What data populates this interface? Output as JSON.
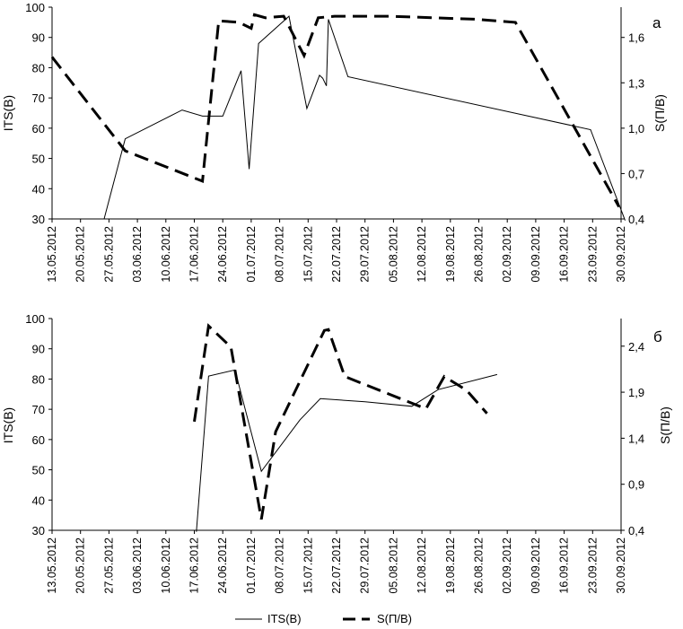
{
  "chart_data": [
    {
      "type": "line",
      "panel_label": "а",
      "xlabel": "",
      "ylabel": "ITS(B)",
      "y2label": "S(П/В)",
      "ylim": [
        30,
        100
      ],
      "yticks": [
        "30",
        "40",
        "50",
        "60",
        "70",
        "80",
        "90",
        "100"
      ],
      "y2lim": [
        0.4,
        1.8
      ],
      "y2ticks": [
        "0,4",
        "0,7",
        "1,0",
        "1,3",
        "1,6"
      ],
      "y2tick_values": [
        0.4,
        0.7,
        1.0,
        1.3,
        1.6
      ],
      "x_dates": [
        "13.05.2012",
        "20.05.2012",
        "27.05.2012",
        "03.06.2012",
        "10.06.2012",
        "17.06.2012",
        "24.06.2012",
        "01.07.2012",
        "08.07.2012",
        "15.07.2012",
        "22.07.2012",
        "29.07.2012",
        "05.08.2012",
        "12.08.2012",
        "19.08.2012",
        "26.08.2012",
        "02.09.2012",
        "09.09.2012",
        "16.09.2012",
        "23.09.2012",
        "30.09.2012"
      ],
      "grid": false,
      "series": [
        {
          "name": "ITS(B)",
          "axis": "left",
          "style": "solid",
          "x": [
            12.8,
            18.0,
            32.0,
            37.0,
            42.0,
            46.5,
            48.5,
            50.8,
            58.3,
            62.7,
            65.8,
            66.6,
            67.5,
            68.0,
            72.8,
            132.5,
            141.0
          ],
          "y": [
            30,
            56.5,
            66,
            64,
            64,
            79,
            46.5,
            88,
            97,
            66.5,
            77.5,
            76.5,
            74,
            96,
            77,
            59.5,
            29.5
          ]
        },
        {
          "name": "S(П/В)",
          "axis": "right",
          "style": "dashed",
          "x": [
            0,
            18.0,
            37.0,
            41.0,
            46.0,
            49.0,
            49.8,
            52.5,
            57.0,
            62.0,
            65.5,
            69.5,
            78.0,
            83.0,
            104.5,
            114.0,
            139.5
          ],
          "y": [
            1.47,
            0.85,
            0.65,
            1.71,
            1.7,
            1.66,
            1.75,
            1.73,
            1.74,
            1.48,
            1.73,
            1.74,
            1.74,
            1.74,
            1.72,
            1.7,
            0.48
          ]
        }
      ]
    },
    {
      "type": "line",
      "panel_label": "б",
      "xlabel": "",
      "ylabel": "ITS(B)",
      "y2label": "S(П/В)",
      "ylim": [
        30,
        100
      ],
      "yticks": [
        "30",
        "40",
        "50",
        "60",
        "70",
        "80",
        "90",
        "100"
      ],
      "y2lim": [
        0.4,
        2.7
      ],
      "y2ticks": [
        "0,4",
        "0,9",
        "1,4",
        "1,9",
        "2,4"
      ],
      "y2tick_values": [
        0.4,
        0.9,
        1.4,
        1.9,
        2.4
      ],
      "x_dates": [
        "13.05.2012",
        "20.05.2012",
        "27.05.2012",
        "03.06.2012",
        "10.06.2012",
        "17.06.2012",
        "24.06.2012",
        "01.07.2012",
        "08.07.2012",
        "15.07.2012",
        "22.07.2012",
        "29.07.2012",
        "05.08.2012",
        "12.08.2012",
        "19.08.2012",
        "26.08.2012",
        "02.09.2012",
        "09.09.2012",
        "16.09.2012",
        "23.09.2012",
        "30.09.2012"
      ],
      "grid": false,
      "series": [
        {
          "name": "ITS(B)",
          "axis": "left",
          "style": "solid",
          "x": [
            35.5,
            38.5,
            45.0,
            51.5,
            61.0,
            66.0,
            77.0,
            88.5,
            95.0,
            109.5
          ],
          "y": [
            29.5,
            81,
            83,
            49.5,
            66.5,
            73.5,
            72.5,
            71,
            76.5,
            81.5
          ]
        },
        {
          "name": "S(П/В)",
          "axis": "right",
          "style": "dashed",
          "x": [
            35.0,
            38.5,
            44.0,
            51.5,
            55.0,
            67.0,
            68.0,
            72.0,
            92.0,
            96.5,
            102.0,
            107.0
          ],
          "y": [
            1.58,
            2.62,
            2.39,
            0.52,
            1.47,
            2.57,
            2.58,
            2.07,
            1.72,
            2.07,
            1.92,
            1.67
          ]
        }
      ]
    }
  ],
  "legend": {
    "items": [
      {
        "label": "ITS(B)",
        "style": "solid"
      },
      {
        "label": "S(П/В)",
        "style": "dashed"
      }
    ]
  }
}
